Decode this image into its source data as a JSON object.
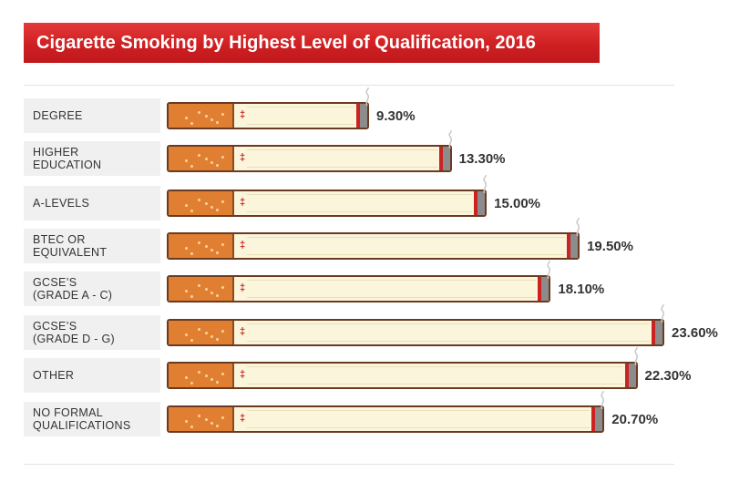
{
  "header": {
    "title": "Cigarette Smoking by Highest Level of Qualification, 2016"
  },
  "colors": {
    "title_bar": "#cf1f22",
    "filter": "#e07f31",
    "paper": "#fbf5dc",
    "outline": "#6b3b21",
    "ash": "#8c8c8c",
    "ember": "#cc2222",
    "label_bg": "#f0f0f1"
  },
  "chart_data": {
    "type": "bar",
    "orientation": "horizontal",
    "title": "Cigarette Smoking by Highest Level of Qualification, 2016",
    "categories": [
      "DEGREE",
      "HIGHER\nEDUCATION",
      "A-LEVELS",
      "BTEC OR\nEQUIVALENT",
      "GCSE’S\n(GRADE A - C)",
      "GCSE’S\n(GRADE D - G)",
      "OTHER",
      "NO FORMAL\nQUALIFICATIONS"
    ],
    "values": [
      9.3,
      13.3,
      15.0,
      19.5,
      18.1,
      23.6,
      22.3,
      20.7
    ],
    "value_labels": [
      "9.30%",
      "13.30%",
      "15.00%",
      "19.50%",
      "18.10%",
      "23.60%",
      "22.30%",
      "20.70%"
    ],
    "unit": "%",
    "xlim": [
      0,
      23.6
    ],
    "grid": false,
    "legend": "none",
    "bar_style": "cigarette"
  }
}
